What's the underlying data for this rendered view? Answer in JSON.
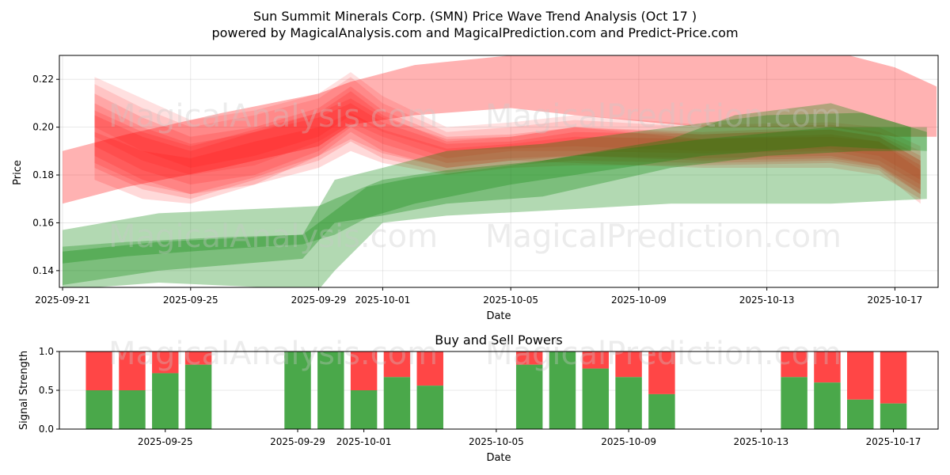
{
  "figure": {
    "title_line1": "Sun Summit Minerals Corp. (SMN) Price Wave Trend Analysis (Oct 17 )",
    "title_line2": "powered by MagicalAnalysis.com and MagicalPrediction.com and Predict-Price.com",
    "watermark_left": "MagicalAnalysis.com",
    "watermark_right": "MagicalPrediction.com"
  },
  "chart_data": [
    {
      "type": "area",
      "name": "price-wave-chart",
      "xlabel": "Date",
      "ylabel": "Price",
      "x_range": [
        "2025-09-20.9",
        "2025-10-18.35"
      ],
      "ylim": [
        0.133,
        0.23
      ],
      "y_ticks": [
        0.14,
        0.16,
        0.18,
        0.2,
        0.22
      ],
      "y_tick_labels": [
        "0.14",
        "0.16",
        "0.18",
        "0.20",
        "0.22"
      ],
      "x_tick_labels": [
        "2025-09-21",
        "2025-09-25",
        "2025-09-29",
        "2025-10-01",
        "2025-10-05",
        "2025-10-09",
        "2025-10-13",
        "2025-10-17"
      ],
      "x_tick_days": [
        0,
        4,
        8,
        10,
        14,
        18,
        22,
        26
      ],
      "colors": {
        "sell": "#ff0000",
        "buy": "#008000",
        "grid": "#b0b0b0"
      },
      "grid": true,
      "green_bands": [
        {
          "x": [
            0,
            3,
            8,
            8.5,
            10,
            12,
            15,
            19,
            21,
            24,
            27
          ],
          "low": [
            0.132,
            0.135,
            0.132,
            0.14,
            0.16,
            0.163,
            0.165,
            0.168,
            0.168,
            0.168,
            0.17
          ],
          "high": [
            0.157,
            0.164,
            0.167,
            0.17,
            0.178,
            0.182,
            0.186,
            0.195,
            0.205,
            0.21,
            0.198
          ],
          "opacity": 0.3
        },
        {
          "x": [
            0,
            3,
            7.5,
            8.5,
            10,
            12,
            15,
            19,
            22,
            25,
            26.5
          ],
          "low": [
            0.134,
            0.14,
            0.145,
            0.16,
            0.163,
            0.168,
            0.171,
            0.183,
            0.188,
            0.19,
            0.19
          ],
          "high": [
            0.148,
            0.152,
            0.155,
            0.178,
            0.183,
            0.19,
            0.193,
            0.2,
            0.205,
            0.206,
            0.2
          ],
          "opacity": 0.3
        },
        {
          "x": [
            0,
            2,
            5,
            7.5,
            8.5,
            9.5,
            11,
            14,
            17,
            20,
            24,
            27
          ],
          "low": [
            0.143,
            0.146,
            0.149,
            0.151,
            0.155,
            0.162,
            0.168,
            0.176,
            0.182,
            0.188,
            0.192,
            0.19
          ],
          "high": [
            0.15,
            0.152,
            0.154,
            0.155,
            0.165,
            0.175,
            0.179,
            0.184,
            0.19,
            0.195,
            0.2,
            0.2
          ],
          "opacity": 0.28
        }
      ],
      "red_bands": [
        {
          "x": [
            0,
            2,
            5,
            8,
            9,
            11,
            14,
            16,
            20,
            24,
            26,
            27.3
          ],
          "low": [
            0.168,
            0.175,
            0.183,
            0.192,
            0.201,
            0.205,
            0.208,
            0.205,
            0.2,
            0.2,
            0.196,
            0.196
          ],
          "high": [
            0.19,
            0.197,
            0.206,
            0.214,
            0.219,
            0.226,
            0.23,
            0.231,
            0.232,
            0.232,
            0.225,
            0.217
          ],
          "opacity": 0.3
        },
        {
          "x": [
            1,
            2.5,
            4,
            6,
            8,
            9,
            10,
            12,
            14,
            16,
            20,
            24,
            25.5,
            26.8
          ],
          "low": [
            0.188,
            0.178,
            0.172,
            0.176,
            0.188,
            0.198,
            0.19,
            0.183,
            0.186,
            0.185,
            0.183,
            0.183,
            0.18,
            0.17
          ],
          "high": [
            0.21,
            0.2,
            0.193,
            0.198,
            0.206,
            0.215,
            0.205,
            0.194,
            0.196,
            0.2,
            0.195,
            0.196,
            0.194,
            0.184
          ],
          "opacity": 0.15
        },
        {
          "x": [
            1,
            2.5,
            4,
            6,
            8,
            9,
            10,
            12,
            14,
            16,
            20,
            24,
            25.5,
            26.8
          ],
          "low": [
            0.183,
            0.174,
            0.17,
            0.178,
            0.186,
            0.194,
            0.187,
            0.181,
            0.184,
            0.186,
            0.185,
            0.186,
            0.183,
            0.172
          ],
          "high": [
            0.205,
            0.196,
            0.19,
            0.198,
            0.204,
            0.21,
            0.202,
            0.193,
            0.194,
            0.198,
            0.197,
            0.199,
            0.196,
            0.186
          ],
          "opacity": 0.15
        },
        {
          "x": [
            1,
            2.5,
            4,
            6,
            8,
            9,
            10,
            12,
            14,
            16,
            20,
            24,
            25.5,
            26.8
          ],
          "low": [
            0.192,
            0.182,
            0.176,
            0.18,
            0.19,
            0.2,
            0.193,
            0.185,
            0.187,
            0.188,
            0.187,
            0.188,
            0.184,
            0.174
          ],
          "high": [
            0.214,
            0.204,
            0.196,
            0.2,
            0.208,
            0.217,
            0.207,
            0.196,
            0.197,
            0.2,
            0.198,
            0.2,
            0.197,
            0.188
          ],
          "opacity": 0.15
        },
        {
          "x": [
            1,
            2.5,
            4,
            6,
            8,
            9,
            10,
            12,
            14,
            16,
            20,
            24,
            25.5,
            26.8
          ],
          "low": [
            0.196,
            0.186,
            0.18,
            0.184,
            0.194,
            0.202,
            0.196,
            0.187,
            0.19,
            0.19,
            0.189,
            0.19,
            0.186,
            0.176
          ],
          "high": [
            0.218,
            0.208,
            0.2,
            0.205,
            0.212,
            0.221,
            0.21,
            0.198,
            0.2,
            0.203,
            0.2,
            0.201,
            0.198,
            0.19
          ],
          "opacity": 0.12
        },
        {
          "x": [
            1,
            2.5,
            4,
            6,
            8,
            9,
            10,
            12,
            14,
            16,
            20,
            24,
            25.5,
            26.8
          ],
          "low": [
            0.178,
            0.17,
            0.168,
            0.176,
            0.183,
            0.19,
            0.185,
            0.18,
            0.183,
            0.184,
            0.184,
            0.185,
            0.182,
            0.168
          ],
          "high": [
            0.198,
            0.19,
            0.187,
            0.194,
            0.2,
            0.206,
            0.199,
            0.191,
            0.193,
            0.196,
            0.195,
            0.197,
            0.194,
            0.182
          ],
          "opacity": 0.15
        },
        {
          "x": [
            1,
            2.5,
            4,
            6,
            8,
            9,
            10,
            12,
            14,
            16,
            20,
            24,
            25.5,
            26.8
          ],
          "low": [
            0.185,
            0.176,
            0.172,
            0.179,
            0.188,
            0.195,
            0.189,
            0.183,
            0.186,
            0.188,
            0.186,
            0.187,
            0.184,
            0.172
          ],
          "high": [
            0.207,
            0.198,
            0.192,
            0.199,
            0.206,
            0.212,
            0.204,
            0.195,
            0.196,
            0.2,
            0.197,
            0.199,
            0.196,
            0.186
          ],
          "opacity": 0.15
        },
        {
          "x": [
            1,
            2.5,
            4,
            6,
            8,
            9,
            10,
            12,
            14,
            16,
            20,
            24,
            25.5,
            26.8
          ],
          "low": [
            0.2,
            0.19,
            0.183,
            0.188,
            0.196,
            0.205,
            0.198,
            0.19,
            0.191,
            0.192,
            0.19,
            0.191,
            0.188,
            0.178
          ],
          "high": [
            0.221,
            0.212,
            0.203,
            0.207,
            0.214,
            0.223,
            0.213,
            0.2,
            0.202,
            0.205,
            0.201,
            0.202,
            0.2,
            0.192
          ],
          "opacity": 0.12
        }
      ]
    },
    {
      "type": "bar",
      "name": "buy-sell-powers",
      "title": "Buy and Sell Powers",
      "xlabel": "Date",
      "ylabel": "Signal Strength",
      "ylim": [
        0,
        1
      ],
      "y_ticks": [
        0,
        0.5,
        1
      ],
      "y_tick_labels": [
        "0.0",
        "0.5",
        "1.0"
      ],
      "x_range": [
        "2025-09-21.8",
        "2025-10-18.35"
      ],
      "x_tick_labels": [
        "2025-09-25",
        "2025-09-29",
        "2025-10-01",
        "2025-10-05",
        "2025-10-09",
        "2025-10-13",
        "2025-10-17"
      ],
      "x_tick_days": [
        4,
        8,
        10,
        14,
        18,
        22,
        26
      ],
      "colors": {
        "buy": "#4aa84a",
        "sell": "#ff4646"
      },
      "days": [
        2,
        3,
        4,
        5,
        8,
        9,
        10,
        11,
        12,
        15,
        16,
        17,
        18,
        19,
        23,
        24,
        25,
        26
      ],
      "dates": [
        "2025-09-23",
        "2025-09-24",
        "2025-09-25",
        "2025-09-26",
        "2025-09-29",
        "2025-09-30",
        "2025-10-01",
        "2025-10-02",
        "2025-10-03",
        "2025-10-06",
        "2025-10-07",
        "2025-10-08",
        "2025-10-09",
        "2025-10-10",
        "2025-10-14",
        "2025-10-15",
        "2025-10-16",
        "2025-10-17"
      ],
      "buy": [
        0.5,
        0.5,
        0.72,
        0.83,
        1.0,
        1.0,
        0.5,
        0.67,
        0.56,
        0.83,
        1.0,
        0.78,
        0.67,
        0.45,
        0.67,
        0.6,
        0.38,
        0.33
      ]
    }
  ]
}
